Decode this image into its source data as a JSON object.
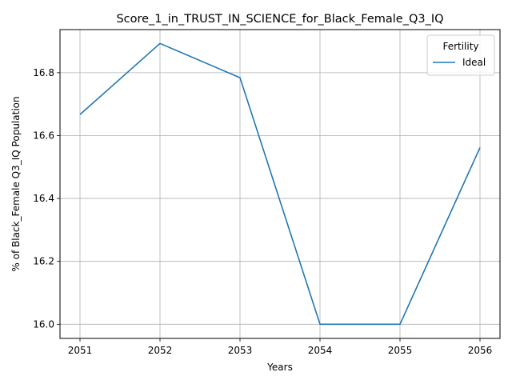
{
  "chart_data": {
    "type": "line",
    "title": "Score_1_in_TRUST_IN_SCIENCE_for_Black_Female_Q3_IQ",
    "xlabel": "Years",
    "ylabel": "% of Black_Female Q3_IQ Population",
    "x": [
      2051,
      2052,
      2053,
      2054,
      2055,
      2056
    ],
    "x_tick_labels": [
      "2051",
      "2052",
      "2053",
      "2054",
      "2055",
      "2056"
    ],
    "y_ticks": [
      16.0,
      16.2,
      16.4,
      16.6,
      16.8
    ],
    "y_tick_labels": [
      "16.0",
      "16.2",
      "16.4",
      "16.6",
      "16.8"
    ],
    "xlim": [
      2050.75,
      2056.25
    ],
    "ylim": [
      15.955,
      16.937
    ],
    "grid": true,
    "legend": {
      "title": "Fertility",
      "placement": "top-right"
    },
    "series": [
      {
        "name": "Ideal",
        "color": "#1f77b4",
        "values": [
          16.667,
          16.893,
          16.784,
          16.0,
          16.0,
          16.562
        ]
      }
    ]
  }
}
